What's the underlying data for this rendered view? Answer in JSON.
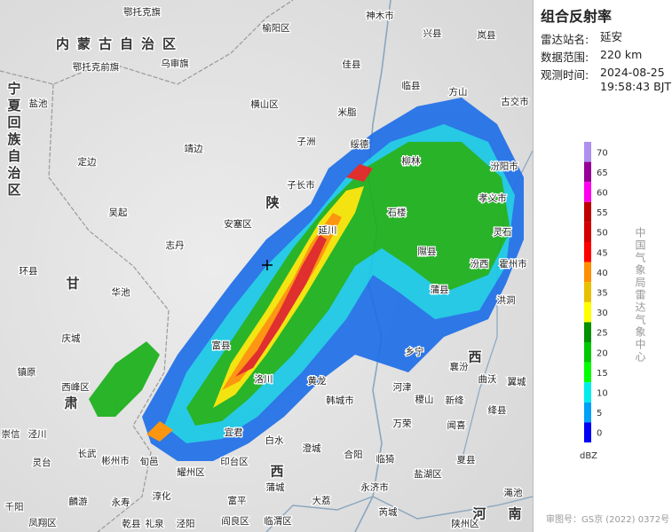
{
  "title": "组合反射率",
  "info": [
    {
      "label": "雷达站名:",
      "value": "延安"
    },
    {
      "label": "数据范围:",
      "value": "220 km"
    },
    {
      "label": "观测时间:",
      "value": "2024-08-25 19:58:43 BJT"
    }
  ],
  "legend": {
    "unit": "dBZ",
    "levels": [
      {
        "value": 70,
        "color": "#ad90f0"
      },
      {
        "value": 65,
        "color": "#960096"
      },
      {
        "value": 60,
        "color": "#ff00f0"
      },
      {
        "value": 55,
        "color": "#c00000"
      },
      {
        "value": 50,
        "color": "#d60000"
      },
      {
        "value": 45,
        "color": "#ff0000"
      },
      {
        "value": 40,
        "color": "#ff9000"
      },
      {
        "value": 35,
        "color": "#e7c000"
      },
      {
        "value": 30,
        "color": "#ffff00"
      },
      {
        "value": 25,
        "color": "#019000"
      },
      {
        "value": 20,
        "color": "#00c800"
      },
      {
        "value": 15,
        "color": "#01ff00"
      },
      {
        "value": 10,
        "color": "#00ecec"
      },
      {
        "value": 5,
        "color": "#01a0f6"
      },
      {
        "value": 0,
        "color": "#0000f6"
      }
    ]
  },
  "agency": "中国气象局雷达气象中心",
  "approval": "审图号：GS京 (2022) 0372号",
  "places": [
    "鄂托克旗",
    "内蒙古自治区",
    "鄂托克前旗",
    "乌审旗",
    "榆阳区",
    "神木市",
    "兴县",
    "岚县",
    "佳县",
    "临县",
    "盐池",
    "横山区",
    "米脂",
    "方山",
    "古交市",
    "靖边",
    "子洲",
    "绥德",
    "定边",
    "子长市",
    "吴起",
    "安塞区",
    "延川",
    "志丹",
    "陕",
    "石楼",
    "隰县",
    "汾西",
    "霍州市",
    "灵石",
    "环县",
    "甘",
    "华池",
    "蒲县",
    "洪洞",
    "庆城",
    "富县",
    "乡宁",
    "襄汾",
    "西",
    "镇原",
    "西峰区",
    "肃",
    "洛川",
    "黄龙",
    "韩城市",
    "河津",
    "稷山",
    "新绛",
    "曲沃",
    "翼城",
    "绛县",
    "万荣",
    "闻喜",
    "宜君",
    "白水",
    "澄城",
    "合阳",
    "崇信",
    "泾川",
    "灵台",
    "长武",
    "彬州市",
    "旬邑",
    "耀州区",
    "印台区",
    "西",
    "临猗",
    "夏县",
    "盐湖区",
    "蒲城",
    "永济市",
    "大荔",
    "千阳",
    "麟游",
    "永寿",
    "淳化",
    "富平",
    "渑池",
    "芮城",
    "凤翔区",
    "乾县",
    "礼泉",
    "泾阳",
    "阎良区",
    "临渭区",
    "陕州区",
    "河",
    "南",
    "宁夏回族自治区",
    "柳林",
    "孝义市",
    "汾阳市"
  ]
}
